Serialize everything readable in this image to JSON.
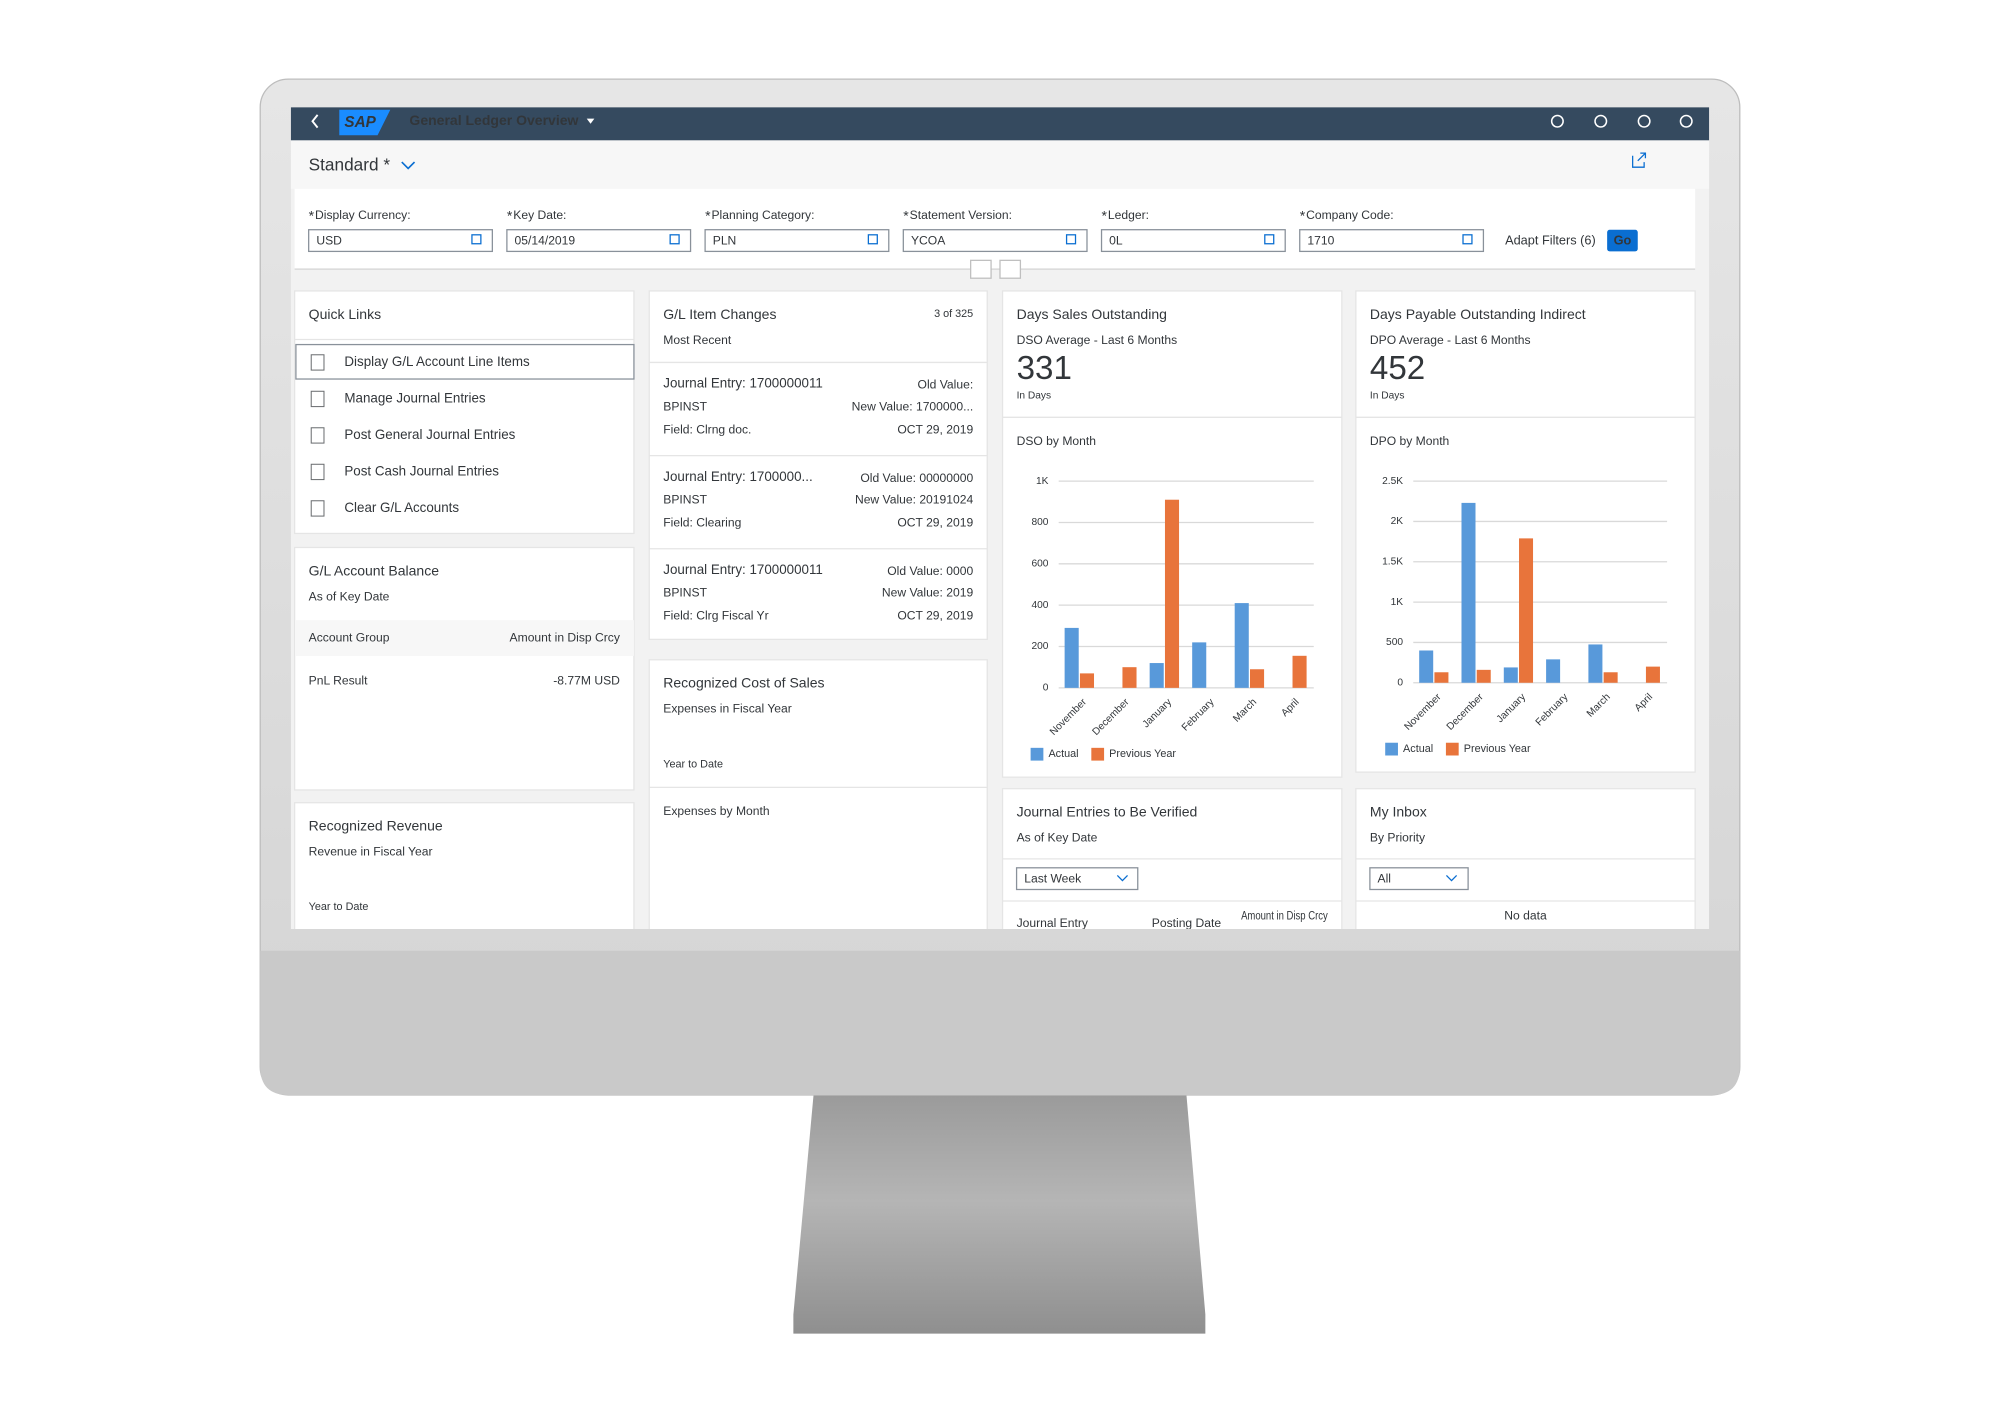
{
  "shell": {
    "logo": "SAP",
    "title": "General Ledger Overview"
  },
  "variant": "Standard *",
  "filters": [
    {
      "label": "Display Currency:",
      "value": "USD"
    },
    {
      "label": "Key Date:",
      "value": "05/14/2019"
    },
    {
      "label": "Planning Category:",
      "value": "PLN"
    },
    {
      "label": "Statement Version:",
      "value": "YCOA"
    },
    {
      "label": "Ledger:",
      "value": "0L"
    },
    {
      "label": "Company Code:",
      "value": "1710"
    }
  ],
  "adapt_filters": "Adapt Filters (6)",
  "go": "Go",
  "quick_links": {
    "title": "Quick Links",
    "items": [
      "Display G/L Account Line Items",
      "Manage Journal Entries",
      "Post General Journal Entries",
      "Post Cash Journal Entries",
      "Clear G/L Accounts"
    ]
  },
  "gl_account_balance": {
    "title": "G/L Account Balance",
    "subtitle": "As of Key Date",
    "columns": [
      "Account Group",
      "Amount in Disp Crcy"
    ],
    "rows": [
      [
        "PnL Result",
        "-8.77M USD"
      ]
    ]
  },
  "recognized_revenue": {
    "title": "Recognized Revenue",
    "subtitle": "Revenue in Fiscal Year",
    "footer": "Year to Date"
  },
  "gl_item_changes": {
    "title": "G/L Item Changes",
    "counter": "3 of 325",
    "subtitle": "Most Recent",
    "entries": [
      {
        "entry": "Journal Entry: 1700000011",
        "old": "Old Value:",
        "user": "BPINST",
        "new": "New Value: 1700000...",
        "field": "Field: Clrng doc.",
        "date": "OCT 29, 2019"
      },
      {
        "entry": "Journal Entry: 1700000...",
        "old": "Old Value: 00000000",
        "user": "BPINST",
        "new": "New Value: 20191024",
        "field": "Field: Clearing",
        "date": "OCT 29, 2019"
      },
      {
        "entry": "Journal Entry: 1700000011",
        "old": "Old Value: 0000",
        "user": "BPINST",
        "new": "New Value: 2019",
        "field": "Field: Clrg Fiscal Yr",
        "date": "OCT 29, 2019"
      }
    ]
  },
  "recognized_cost": {
    "title": "Recognized Cost of Sales",
    "subtitle": "Expenses in Fiscal Year",
    "footer": "Year to Date",
    "chart_title": "Expenses by Month"
  },
  "dso": {
    "title": "Days Sales Outstanding",
    "subtitle": "DSO Average - Last 6 Months",
    "kpi": 331,
    "unit": "In Days",
    "chart": {
      "type": "bar",
      "title": "DSO by Month",
      "categories": [
        "November",
        "December",
        "January",
        "February",
        "March",
        "April"
      ],
      "series": [
        {
          "name": "Actual",
          "color": "#5899da",
          "values": [
            290,
            null,
            120,
            220,
            410,
            null
          ]
        },
        {
          "name": "Previous Year",
          "color": "#e8743b",
          "values": [
            70,
            100,
            910,
            null,
            90,
            155
          ]
        }
      ],
      "ylim": [
        0,
        1000
      ],
      "yticks": [
        0,
        200,
        400,
        600,
        800,
        {
          "value": 1000,
          "label": "1K"
        }
      ],
      "grid": true
    }
  },
  "dpo": {
    "title": "Days Payable Outstanding Indirect",
    "subtitle": "DPO Average - Last 6 Months",
    "kpi": 452,
    "unit": "In Days",
    "chart": {
      "type": "bar",
      "title": "DPO by Month",
      "categories": [
        "November",
        "December",
        "January",
        "February",
        "March",
        "April"
      ],
      "series": [
        {
          "name": "Actual",
          "color": "#5899da",
          "values": [
            400,
            2230,
            190,
            290,
            475,
            null
          ]
        },
        {
          "name": "Previous Year",
          "color": "#e8743b",
          "values": [
            130,
            160,
            1790,
            null,
            130,
            200
          ]
        }
      ],
      "ylim": [
        0,
        2500
      ],
      "yticks": [
        0,
        500,
        {
          "value": 1000,
          "label": "1K"
        },
        {
          "value": 1500,
          "label": "1.5K"
        },
        {
          "value": 2000,
          "label": "2K"
        },
        {
          "value": 2500,
          "label": "2.5K"
        }
      ],
      "grid": true
    }
  },
  "journal_entries": {
    "title": "Journal Entries to Be Verified",
    "subtitle": "As of Key Date",
    "select": "Last Week",
    "columns": [
      "Journal Entry",
      "Posting Date",
      "Amount in Disp Crcy"
    ]
  },
  "inbox": {
    "title": "My Inbox",
    "subtitle": "By Priority",
    "select": "All",
    "empty": "No data"
  }
}
